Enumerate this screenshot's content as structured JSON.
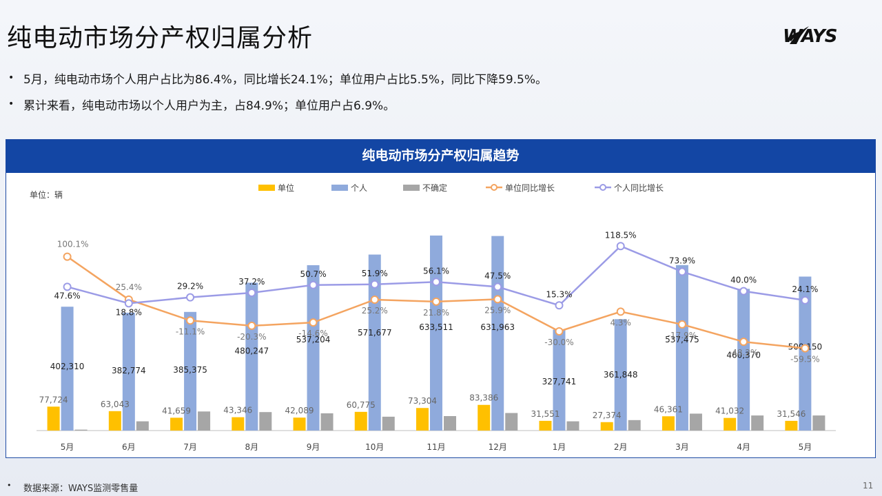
{
  "page": {
    "title": "纯电动市场分产权归属分析",
    "logo_text": "WAYS",
    "bullets": [
      "5月，纯电动市场个人用户占比为86.4%，同比增长24.1%；单位用户占比5.5%，同比下降59.5%。",
      "累计来看，纯电动市场以个人用户为主，占84.9%；单位用户占6.9%。"
    ],
    "source": "数据来源：WAYS监测零售量",
    "page_number": "11"
  },
  "chart_data": {
    "type": "bar",
    "title": "纯电动市场分产权归属趋势",
    "unit_label": "单位：辆",
    "categories": [
      "5月",
      "6月",
      "7月",
      "8月",
      "9月",
      "10月",
      "11月",
      "12月",
      "1月",
      "2月",
      "3月",
      "4月",
      "5月"
    ],
    "series": [
      {
        "name": "单位",
        "kind": "bar",
        "color": "#ffc000",
        "values": [
          77724,
          63043,
          41659,
          43346,
          42089,
          60775,
          73304,
          83386,
          31551,
          27374,
          46361,
          41032,
          31546
        ],
        "labels": [
          "77,724",
          "63,043",
          "41,659",
          "43,346",
          "42,089",
          "60,775",
          "73,304",
          "83,386",
          "31,551",
          "27,374",
          "46,361",
          "41,032",
          "31,546"
        ]
      },
      {
        "name": "个人",
        "kind": "bar",
        "color": "#8faadc",
        "values": [
          402310,
          382774,
          385375,
          480247,
          537204,
          571677,
          633511,
          631963,
          327741,
          361848,
          537475,
          460370,
          500150
        ],
        "labels": [
          "402,310",
          "382,774",
          "385,375",
          "480,247",
          "537,204",
          "571,677",
          "633,511",
          "631,963",
          "327,741",
          "361,848",
          "537,475",
          "460,370",
          "500,150"
        ]
      },
      {
        "name": "不确定",
        "kind": "bar",
        "color": "#a6a6a6",
        "values": [
          3000,
          30000,
          62000,
          60000,
          56000,
          45000,
          47000,
          57000,
          30000,
          34000,
          55000,
          49000,
          49000
        ]
      },
      {
        "name": "单位同比增长",
        "kind": "line",
        "color": "#f4a460",
        "values": [
          100.1,
          25.4,
          -11.1,
          -20.3,
          -14.6,
          25.2,
          21.8,
          25.9,
          -30.0,
          4.3,
          -17.9,
          -48.2,
          -59.5
        ],
        "labels": [
          "100.1%",
          "25.4%",
          "-11.1%",
          "-20.3%",
          "-14.6%",
          "25.2%",
          "21.8%",
          "25.9%",
          "-30.0%",
          "4.3%",
          "-17.9%",
          "-48.2%",
          "-59.5%"
        ]
      },
      {
        "name": "个人同比增长",
        "kind": "line",
        "color": "#9b9be6",
        "values": [
          47.6,
          18.8,
          29.2,
          37.2,
          50.7,
          51.9,
          56.1,
          47.5,
          15.3,
          118.5,
          73.9,
          40.0,
          24.1
        ],
        "labels": [
          "47.6%",
          "18.8%",
          "29.2%",
          "37.2%",
          "50.7%",
          "51.9%",
          "56.1%",
          "47.5%",
          "15.3%",
          "118.5%",
          "73.9%",
          "40.0%",
          "24.1%"
        ]
      }
    ],
    "bar_ylim": [
      0,
      640000
    ],
    "line_ylim": [
      -150,
      150
    ],
    "legend_position": "top"
  }
}
